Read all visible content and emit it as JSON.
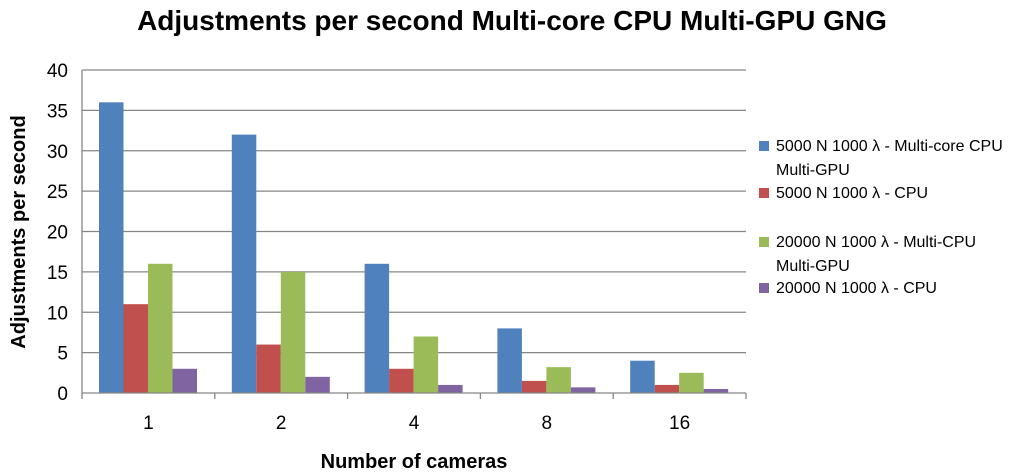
{
  "chart_data": {
    "type": "bar",
    "title": "Adjustments per second Multi-core CPU Multi-GPU GNG",
    "xlabel": "Number of cameras",
    "ylabel": "Adjustments per second",
    "categories": [
      "1",
      "2",
      "4",
      "8",
      "16"
    ],
    "ylim": [
      0,
      40
    ],
    "yticks": [
      0,
      5,
      10,
      15,
      20,
      25,
      30,
      35,
      40
    ],
    "grid": true,
    "legend_position": "right",
    "series": [
      {
        "name": "5000 N 1000 λ - Multi-core CPU Multi-GPU",
        "color": "#4F81BD",
        "values": [
          36,
          32,
          16,
          8,
          4
        ]
      },
      {
        "name": "5000 N 1000 λ - CPU",
        "color": "#C0504D",
        "values": [
          11,
          6,
          3,
          1.5,
          1
        ]
      },
      {
        "name": "20000 N 1000 λ - Multi-CPU Multi-GPU",
        "color": "#9BBB59",
        "values": [
          16,
          15,
          7,
          3.2,
          2.5
        ]
      },
      {
        "name": "20000 N 1000 λ - CPU",
        "color": "#8064A2",
        "values": [
          3,
          2,
          1,
          0.7,
          0.5
        ]
      }
    ]
  }
}
